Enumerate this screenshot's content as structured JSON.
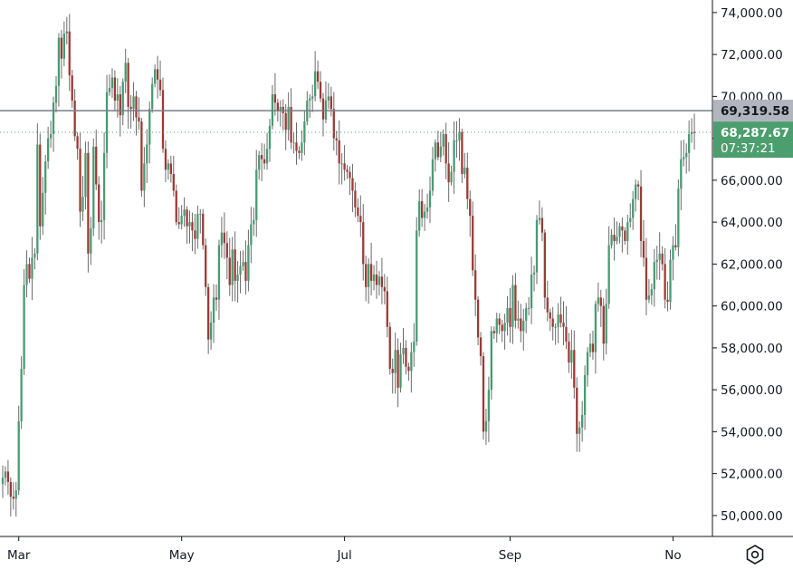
{
  "chart_data": {
    "type": "candlestick",
    "ylim": [
      49000,
      74600
    ],
    "y_ticks": [
      50000,
      52000,
      54000,
      56000,
      58000,
      60000,
      62000,
      64000,
      66000,
      68000,
      70000,
      72000,
      74000
    ],
    "y_tick_labels": [
      "50,000.00",
      "52,000.00",
      "54,000.00",
      "56,000.00",
      "58,000.00",
      "60,000.00",
      "62,000.00",
      "64,000.00",
      "66,000.00",
      "68,000.00",
      "70,000.00",
      "72,000.00",
      "74,000.00"
    ],
    "x_ticks": [
      {
        "label": "Mar",
        "date": "2024-03-01"
      },
      {
        "label": "May",
        "date": "2024-05-01"
      },
      {
        "label": "Jul",
        "date": "2024-07-01"
      },
      {
        "label": "Sep",
        "date": "2024-09-01"
      },
      {
        "label": "No",
        "date": "2024-11-01"
      }
    ],
    "first_date": "2024-02-24",
    "horizontal_line": {
      "value": 69319.58,
      "label": "69,319.58"
    },
    "last_price": {
      "value": 68287.67,
      "label": "68,287.67",
      "countdown": "07:37:21"
    },
    "colors": {
      "up": "#26a69a",
      "down": "#ef5350",
      "up_body": "#4a9a73",
      "down_body": "#9a3b36",
      "wick": "#6b6b6b",
      "hline": "#787b86",
      "price_tag": "#4c9e6e",
      "hline_tag": "#b2b5be"
    },
    "closes": [
      51800,
      52100,
      51600,
      50900,
      50800,
      51200,
      54500,
      57000,
      61000,
      62000,
      61300,
      62300,
      62500,
      67700,
      63800,
      65400,
      66900,
      68000,
      68200,
      69700,
      70500,
      72800,
      71800,
      73000,
      73100,
      71000,
      69800,
      68100,
      67500,
      64500,
      65200,
      67300,
      62500,
      63700,
      67600,
      65800,
      64000,
      64100,
      67300,
      70200,
      70400,
      70900,
      69800,
      70100,
      69100,
      70700,
      71600,
      69500,
      69400,
      70000,
      69000,
      68800,
      65500,
      66800,
      67700,
      69400,
      70600,
      71300,
      70800,
      70300,
      67500,
      66500,
      66800,
      66300,
      65500,
      64000,
      63900,
      64300,
      64600,
      63800,
      64000,
      63600,
      63200,
      64400,
      64400,
      62900,
      60900,
      58400,
      59200,
      60400,
      60300,
      62900,
      63500,
      63000,
      62300,
      61000,
      62700,
      61200,
      61500,
      61900,
      62100,
      61200,
      62900,
      63900,
      64100,
      66500,
      67200,
      67000,
      66800,
      67500,
      68600,
      70100,
      69700,
      69300,
      69500,
      69200,
      68400,
      69500,
      67800,
      67800,
      67400,
      67300,
      67800,
      68800,
      69800,
      69900,
      70000,
      71200,
      70700,
      69900,
      68900,
      69800,
      70000,
      69400,
      68000,
      67900,
      66800,
      66800,
      66500,
      66400,
      66100,
      65500,
      64700,
      64300,
      64000,
      62000,
      60900,
      62000,
      61200,
      61500,
      61000,
      61400,
      60900,
      60700,
      59000,
      57000,
      56800,
      57900,
      56100,
      57700,
      58000,
      57100,
      56900,
      57800,
      58300,
      63600,
      65000,
      64200,
      64500,
      64700,
      65500,
      67000,
      67800,
      67100,
      67600,
      68200,
      66800,
      65900,
      66400,
      67900,
      67900,
      68300,
      66300,
      66600,
      65100,
      64300,
      61700,
      60300,
      58500,
      57600,
      54000,
      54500,
      56000,
      58800,
      58700,
      59400,
      59100,
      58800,
      59200,
      59900,
      59000,
      61000,
      59300,
      59400,
      58800,
      59300,
      59900,
      59900,
      61500,
      61600,
      64100,
      64200,
      63500,
      60400,
      59700,
      59400,
      59000,
      59000,
      59600,
      59200,
      59000,
      58300,
      57300,
      57900,
      56100,
      53900,
      54200,
      54800,
      56700,
      57800,
      58200,
      57800,
      60100,
      60400,
      60000,
      58200,
      60100,
      62900,
      63400,
      63100,
      63300,
      63800,
      63600,
      63100,
      64000,
      64200,
      65100,
      65800,
      65700,
      63100,
      62300,
      60300,
      60500,
      60800,
      62100,
      62200,
      62500,
      62000,
      60300,
      60200,
      62200,
      62900,
      62800,
      65600,
      67000,
      67100,
      67300,
      68200,
      68300,
      68288
    ]
  },
  "settings": {
    "icon": "gear-hex-icon"
  }
}
